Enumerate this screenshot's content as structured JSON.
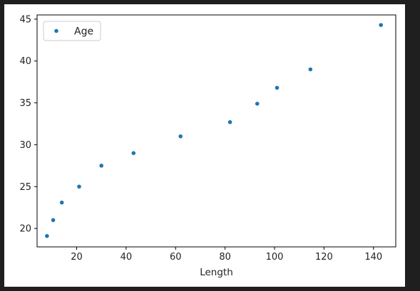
{
  "chart_data": {
    "type": "scatter",
    "xlabel": "Length",
    "ylabel": "",
    "xlim": [
      4,
      149
    ],
    "ylim": [
      17.8,
      45.5
    ],
    "xticks": [
      20,
      40,
      60,
      80,
      100,
      120,
      140
    ],
    "yticks": [
      20,
      25,
      30,
      35,
      40,
      45
    ],
    "grid": false,
    "legend_position": "top-left",
    "series": [
      {
        "name": "Age",
        "color": "#1f77b4",
        "points": [
          {
            "x": 8,
            "y": 19.1
          },
          {
            "x": 10.5,
            "y": 21
          },
          {
            "x": 14,
            "y": 23.1
          },
          {
            "x": 21,
            "y": 25
          },
          {
            "x": 30,
            "y": 27.5
          },
          {
            "x": 43,
            "y": 29
          },
          {
            "x": 62,
            "y": 31
          },
          {
            "x": 82,
            "y": 32.7
          },
          {
            "x": 93,
            "y": 34.9
          },
          {
            "x": 101,
            "y": 36.8
          },
          {
            "x": 114.5,
            "y": 39
          },
          {
            "x": 143,
            "y": 44.3
          }
        ]
      }
    ]
  }
}
